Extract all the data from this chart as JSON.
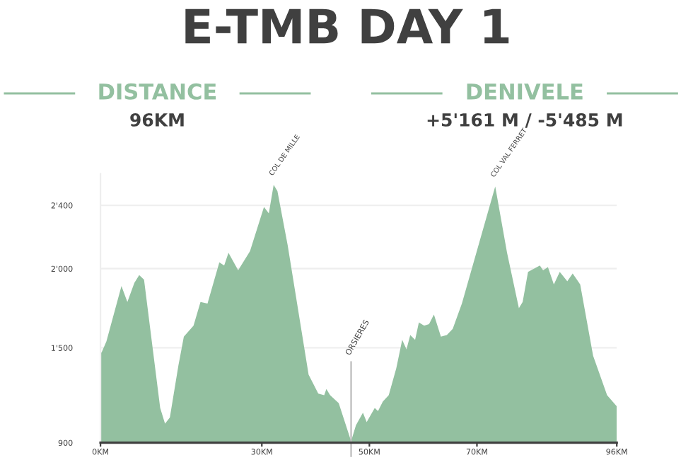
{
  "chart_data": {
    "type": "area",
    "title": "E-TMB DAY 1",
    "annotations": [
      "DISTANCE",
      "96KM",
      "DENIVELE",
      "+5'161 M / -5'485 M",
      {
        "text": "COL DE MILLE",
        "x": 32.2,
        "y": 2530
      },
      {
        "text": "COL VAL FERRET",
        "x": 73.4,
        "y": 2520
      }
    ],
    "x": [
      0,
      0.2,
      1.1,
      3.9,
      5.0,
      6.3,
      7.2,
      8.1,
      11.1,
      12.0,
      12.9,
      14.5,
      15.5,
      17.3,
      18.6,
      19.9,
      22.1,
      23.0,
      23.8,
      25.6,
      27.8,
      30.4,
      31.3,
      32.2,
      32.9,
      34.8,
      38.7,
      40.5,
      41.6,
      42.0,
      42.7,
      44.3,
      46.6,
      47.5,
      48.8,
      49.5,
      51.0,
      51.6,
      52.5,
      53.6,
      55.0,
      56.1,
      56.9,
      57.6,
      58.5,
      59.2,
      60.2,
      61.1,
      62.0,
      63.3,
      64.4,
      65.5,
      67.2,
      73.4,
      75.6,
      77.8,
      78.5,
      79.5,
      81.7,
      82.3,
      83.2,
      84.3,
      85.4,
      86.8,
      87.8,
      89.2,
      91.6,
      94.2,
      96
    ],
    "series": [
      {
        "color": "#93c0a0",
        "values": [
          1470,
          1470,
          1540,
          1890,
          1790,
          1910,
          1960,
          1930,
          1120,
          1020,
          1060,
          1390,
          1570,
          1640,
          1790,
          1780,
          2040,
          2020,
          2100,
          1990,
          2110,
          2390,
          2350,
          2530,
          2490,
          2150,
          1330,
          1210,
          1200,
          1240,
          1200,
          1150,
          910,
          1010,
          1090,
          1030,
          1120,
          1100,
          1160,
          1200,
          1370,
          1550,
          1490,
          1580,
          1550,
          1660,
          1640,
          1650,
          1710,
          1570,
          1580,
          1620,
          1780,
          2520,
          2100,
          1750,
          1790,
          1980,
          2020,
          1990,
          2010,
          1900,
          1980,
          1920,
          1970,
          1900,
          1450,
          1200,
          1130
        ]
      }
    ],
    "xlim": [
      0,
      96
    ],
    "ylim": [
      900,
      2600
    ],
    "xticks": [
      {
        "value": 0,
        "label": "0KM"
      },
      {
        "value": 30,
        "label": "30KM"
      },
      {
        "value": 50,
        "label": "50KM"
      },
      {
        "value": 70,
        "label": "70KM"
      },
      {
        "value": 96,
        "label": "96KM"
      }
    ],
    "yticks": [
      {
        "value": 900,
        "label": "900"
      },
      {
        "value": 1500,
        "label": "1'500"
      },
      {
        "value": 2000,
        "label": "2'000"
      },
      {
        "value": 2400,
        "label": "2'400"
      }
    ],
    "grid": "y",
    "ref_lines": [
      {
        "axis": "x",
        "value": 46.6,
        "label": "ORSIERES",
        "color": "#bbbbbb"
      }
    ]
  }
}
